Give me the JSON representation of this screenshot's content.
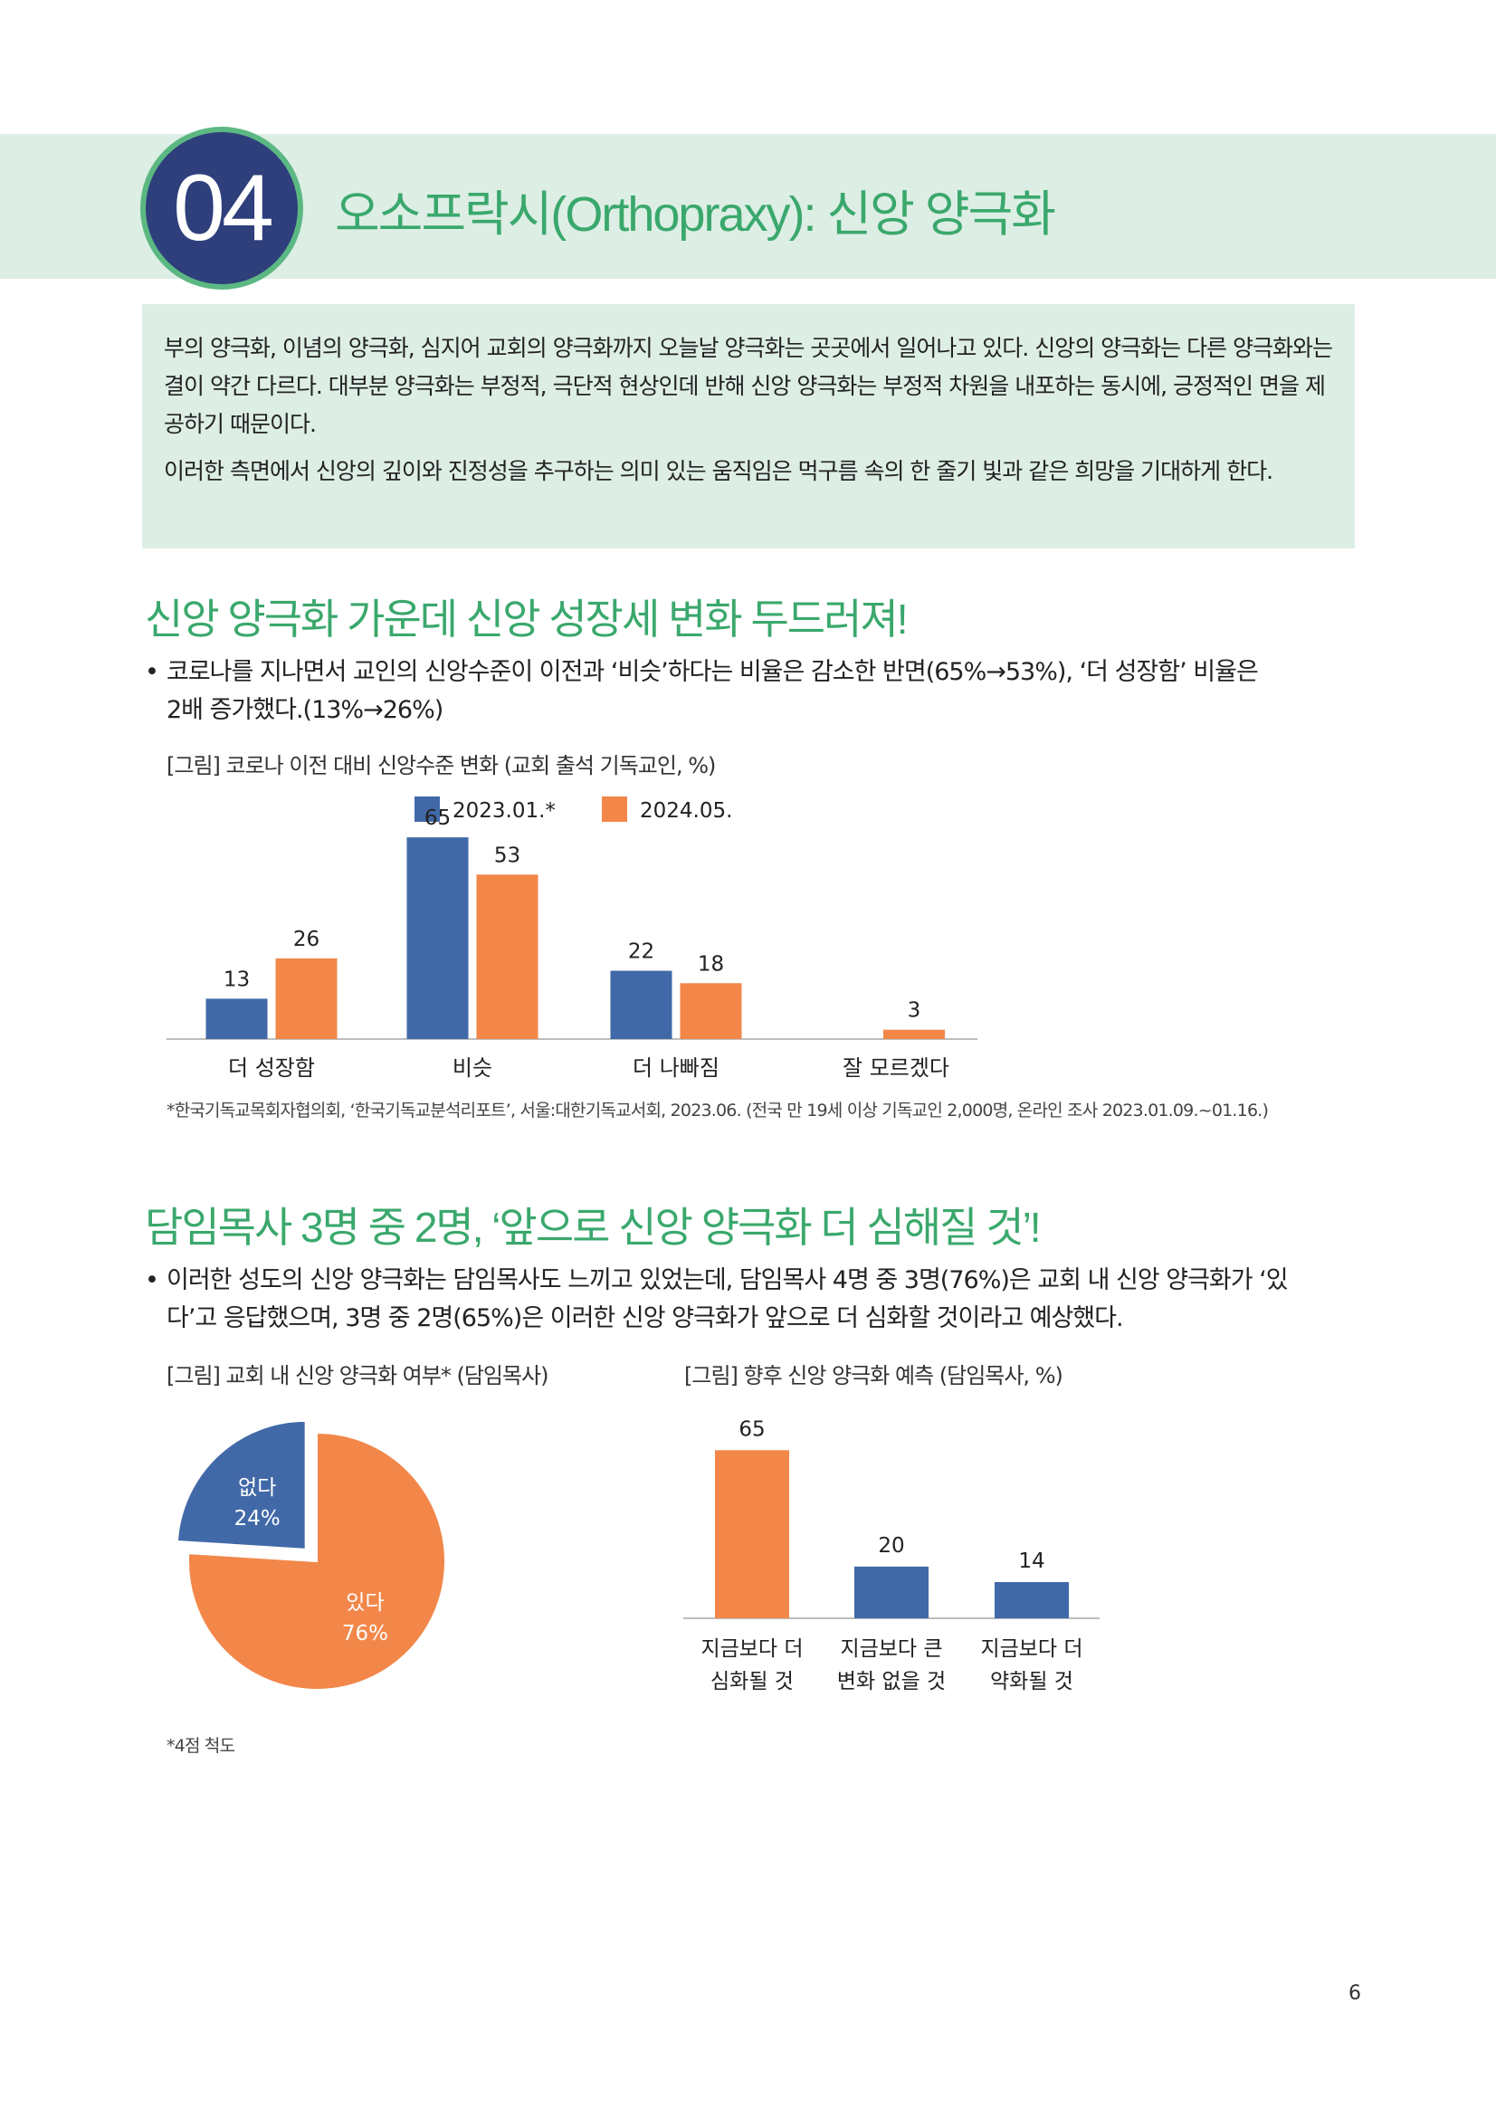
{
  "header": {
    "section_number": "04",
    "section_title": "오소프락시(Orthopraxy): 신앙 양극화"
  },
  "intro": {
    "paragraph1": "부의 양극화, 이념의 양극화, 심지어 교회의 양극화까지 오늘날 양극화는 곳곳에서 일어나고 있다. 신앙의 양극화는 다른 양극화와는 결이 약간 다르다. 대부분 양극화는 부정적, 극단적 현상인데 반해 신앙 양극화는 부정적 차원을 내포하는 동시에, 긍정적인 면을 제공하기 때문이다.",
    "paragraph2": "이러한 측면에서 신앙의 깊이와 진정성을 추구하는 의미 있는 움직임은 먹구름 속의 한 줄기 빛과 같은 희망을 기대하게 한다."
  },
  "section1": {
    "heading": "신앙 양극화 가운데 신앙 성장세 변화 두드러져!",
    "bullet_line1": "코로나를 지나면서 교인의 신앙수준이 이전과 ‘비슷’하다는 비율은 감소한 반면(65%→53%), ‘더 성장함’ 비율은",
    "bullet_line2": "2배 증가했다.(13%→26%)",
    "figure_caption": "[그림] 코로나 이전 대비 신앙수준 변화 (교회 출석 기독교인, %)",
    "source_note": "*한국기독교목회자협의회, ‘한국기독교분석리포트’, 서울:대한기독교서회, 2023.06. (전국 만 19세 이상 기독교인 2,000명, 온라인 조사 2023.01.09.~01.16.)"
  },
  "section2": {
    "heading": "담임목사 3명 중 2명, ‘앞으로 신앙 양극화 더 심해질 것’!",
    "bullet_line1": "이러한 성도의 신앙 양극화는 담임목사도 느끼고 있었는데, 담임목사 4명 중 3명(76%)은 교회 내 신앙 양극화가 ‘있",
    "bullet_line2": "다’고 응답했으며, 3명 중 2명(65%)은 이러한 신앙 양극화가 앞으로 더 심화할 것이라고 예상했다.",
    "pie_caption": "[그림] 교회 내 신앙 양극화 여부* (담임목사)",
    "bar_caption": "[그림] 향후 신앙 양극화 예측 (담임목사, %)",
    "scale_note": "*4점 척도"
  },
  "chart_data": [
    {
      "type": "bar",
      "title": "",
      "categories": [
        "더 성장함",
        "비슷",
        "더 나빠짐",
        "잘 모르겠다"
      ],
      "series": [
        {
          "name": "2023.01.*",
          "values": [
            13,
            65,
            22,
            null
          ],
          "color": "#4169a8"
        },
        {
          "name": "2024.05.",
          "values": [
            26,
            53,
            18,
            3
          ],
          "color": "#f28749"
        }
      ],
      "ylim": [
        0,
        70
      ],
      "legend": "top-center",
      "grid": false
    },
    {
      "type": "pie",
      "slices": [
        {
          "label": "있다",
          "value": 76,
          "display": "76%",
          "color": "#f28749"
        },
        {
          "label": "없다",
          "value": 24,
          "display": "24%",
          "color": "#4169a8"
        }
      ]
    },
    {
      "type": "bar",
      "categories": [
        [
          "지금보다 더",
          "심화될 것"
        ],
        [
          "지금보다 큰",
          "변화 없을 것"
        ],
        [
          "지금보다 더",
          "약화될 것"
        ]
      ],
      "values": [
        65,
        20,
        14
      ],
      "colors": [
        "#f28749",
        "#4169a8",
        "#4169a8"
      ],
      "ylim": [
        0,
        70
      ],
      "grid": false
    }
  ],
  "page": {
    "number": "6"
  }
}
